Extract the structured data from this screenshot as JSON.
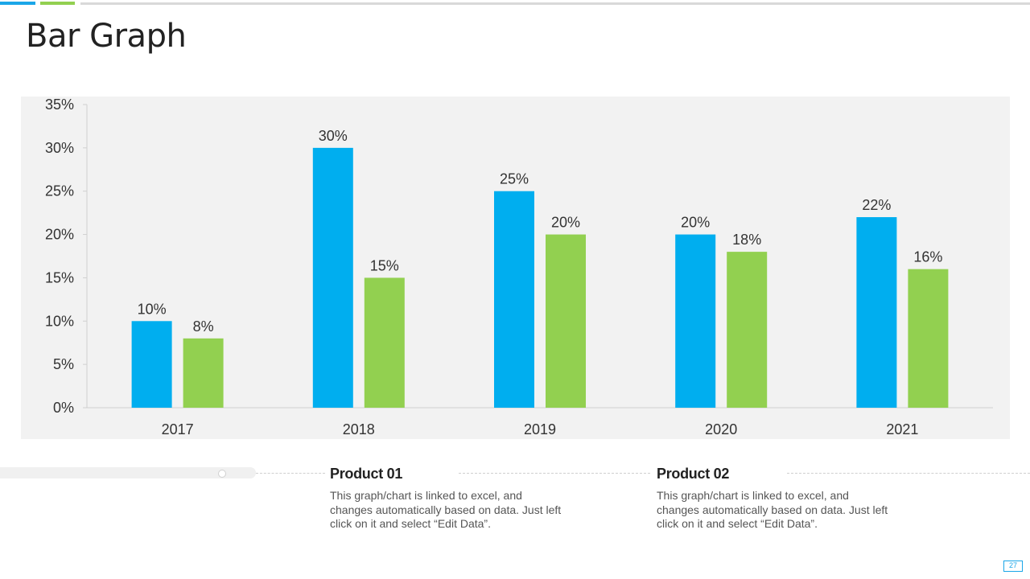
{
  "slide": {
    "title": "Bar Graph",
    "page_number": "27"
  },
  "chart_data": {
    "type": "bar",
    "categories": [
      "2017",
      "2018",
      "2019",
      "2020",
      "2021"
    ],
    "series": [
      {
        "values": [
          10,
          30,
          25,
          20,
          22
        ],
        "color": "#00aeef"
      },
      {
        "values": [
          8,
          15,
          20,
          18,
          16
        ],
        "color": "#92d050"
      }
    ],
    "data_labels": [
      [
        "10%",
        "30%",
        "25%",
        "20%",
        "22%"
      ],
      [
        "8%",
        "15%",
        "20%",
        "18%",
        "16%"
      ]
    ],
    "y_tick_labels": [
      "0%",
      "5%",
      "10%",
      "15%",
      "20%",
      "25%",
      "30%",
      "35%"
    ],
    "y_ticks": [
      0,
      5,
      10,
      15,
      20,
      25,
      30,
      35
    ],
    "ylim": [
      0,
      35
    ],
    "grid": false,
    "title": "",
    "xlabel": "",
    "ylabel": ""
  },
  "products": [
    {
      "title": "Product 01",
      "text": "This graph/chart is linked to excel, and changes automatically based on data. Just left click on it and select “Edit Data”."
    },
    {
      "title": "Product 02",
      "text": "This graph/chart is linked to excel, and changes automatically based on data. Just left click on it and select “Edit Data”."
    }
  ]
}
